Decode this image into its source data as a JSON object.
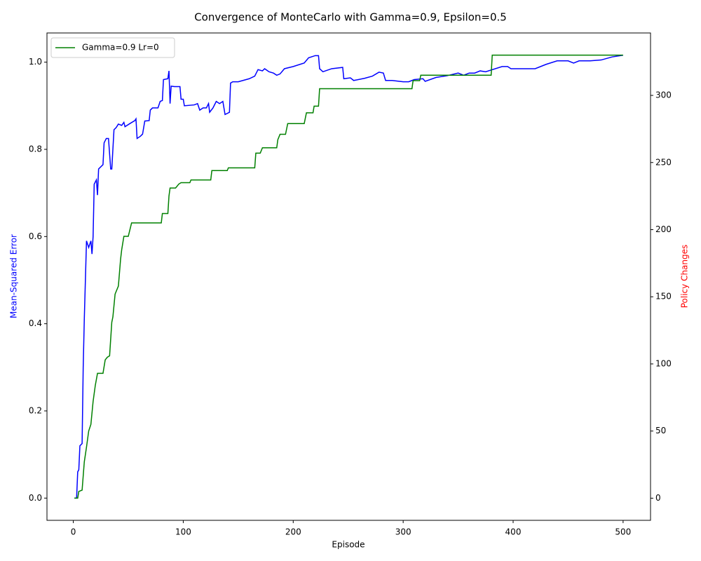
{
  "chart_data": {
    "type": "line",
    "title": "Convergence of MonteCarlo with Gamma=0.9, Epsilon=0.5",
    "xlabel": "Episode",
    "ylabel": "Mean-Squared Error",
    "y2label": "Policy Changes",
    "ylabel_color": "blue",
    "y2label_color": "red",
    "legend_loc": "upper left",
    "xlim": [
      -23.95,
      524.95
    ],
    "xticks": [
      0,
      100,
      200,
      300,
      400,
      500
    ],
    "ylim": [
      -0.051,
      1.067
    ],
    "yticks": [
      {
        "value": 0,
        "label": "0.0"
      },
      0.2,
      0.4,
      0.6,
      0.8,
      {
        "value": 1,
        "label": "1.0"
      }
    ],
    "y2lim": [
      -16.5,
      346.5
    ],
    "y2ticks": [
      0,
      50,
      100,
      150,
      200,
      250,
      300
    ],
    "series": [
      {
        "color": "blue",
        "axis": "y",
        "x": [
          1,
          3,
          4,
          5,
          6,
          8,
          9,
          10,
          12,
          14,
          16,
          17,
          18,
          19,
          21,
          22,
          23,
          27,
          28,
          30,
          32,
          34,
          35,
          37,
          39,
          41,
          44,
          46,
          47,
          52,
          56,
          57,
          58,
          61,
          63,
          65,
          69,
          70,
          72,
          77,
          79,
          81,
          82,
          86,
          87,
          88,
          89,
          92,
          97,
          98,
          100,
          101,
          110,
          113,
          115,
          118,
          121,
          123,
          124,
          127,
          130,
          133,
          136,
          138,
          142,
          143,
          145,
          150,
          160,
          165,
          168,
          172,
          174,
          178,
          182,
          185,
          188,
          192,
          200,
          210,
          214,
          220,
          223,
          224,
          227,
          235,
          245,
          246,
          252,
          255,
          265,
          272,
          278,
          282,
          284,
          290,
          300,
          305,
          310,
          318,
          320,
          330,
          340,
          350,
          355,
          360,
          365,
          370,
          375,
          390,
          395,
          398,
          420,
          430,
          440,
          450,
          455,
          460,
          470,
          480,
          490,
          500
        ],
        "values": [
          0,
          0,
          0.06,
          0.065,
          0.12,
          0.125,
          0.3,
          0.41,
          0.59,
          0.575,
          0.59,
          0.56,
          0.6,
          0.72,
          0.73,
          0.695,
          0.755,
          0.765,
          0.815,
          0.825,
          0.825,
          0.755,
          0.755,
          0.845,
          0.85,
          0.858,
          0.855,
          0.862,
          0.852,
          0.86,
          0.866,
          0.87,
          0.825,
          0.83,
          0.835,
          0.865,
          0.866,
          0.89,
          0.895,
          0.895,
          0.91,
          0.912,
          0.96,
          0.962,
          0.98,
          0.905,
          0.945,
          0.944,
          0.944,
          0.915,
          0.915,
          0.9,
          0.902,
          0.905,
          0.89,
          0.895,
          0.895,
          0.905,
          0.885,
          0.895,
          0.91,
          0.905,
          0.91,
          0.88,
          0.885,
          0.952,
          0.955,
          0.955,
          0.962,
          0.968,
          0.983,
          0.98,
          0.985,
          0.978,
          0.975,
          0.97,
          0.973,
          0.985,
          0.99,
          0.998,
          1.01,
          1.015,
          1.015,
          0.985,
          0.978,
          0.985,
          0.988,
          0.962,
          0.964,
          0.958,
          0.963,
          0.968,
          0.977,
          0.975,
          0.958,
          0.958,
          0.955,
          0.955,
          0.96,
          0.962,
          0.956,
          0.965,
          0.969,
          0.975,
          0.97,
          0.975,
          0.975,
          0.98,
          0.978,
          0.99,
          0.99,
          0.985,
          0.985,
          0.995,
          1.003,
          1.003,
          0.998,
          1.003,
          1.003,
          1.005,
          1.012,
          1.016
        ]
      },
      {
        "name": "Gamma=0.9 Lr=0",
        "color": "green",
        "axis": "y2",
        "x": [
          1,
          4,
          5,
          8,
          10,
          12,
          14,
          16,
          18,
          20,
          22,
          27,
          29,
          31,
          33,
          35,
          36,
          38,
          41,
          43,
          44,
          46,
          50,
          53,
          55,
          80,
          81,
          86,
          87,
          88,
          93,
          96,
          98,
          106,
          107,
          125,
          126,
          140,
          141,
          165,
          166,
          170,
          172,
          185,
          186,
          188,
          193,
          195,
          210,
          212,
          218,
          219,
          223,
          224,
          308,
          309,
          315,
          316,
          380,
          381,
          500
        ],
        "values": [
          0,
          0,
          5,
          6,
          27,
          38,
          50,
          55,
          72,
          84,
          93,
          93,
          103,
          105,
          106,
          131,
          135,
          152,
          158,
          178,
          185,
          195,
          195,
          205,
          205,
          205,
          212,
          212,
          225,
          231,
          231,
          234,
          235,
          235,
          237,
          237,
          244,
          244,
          246,
          246,
          257,
          257,
          261,
          261,
          267,
          271,
          271,
          279,
          279,
          287,
          287,
          292,
          292,
          305,
          305,
          311,
          311,
          315,
          315,
          330,
          330
        ]
      }
    ]
  }
}
